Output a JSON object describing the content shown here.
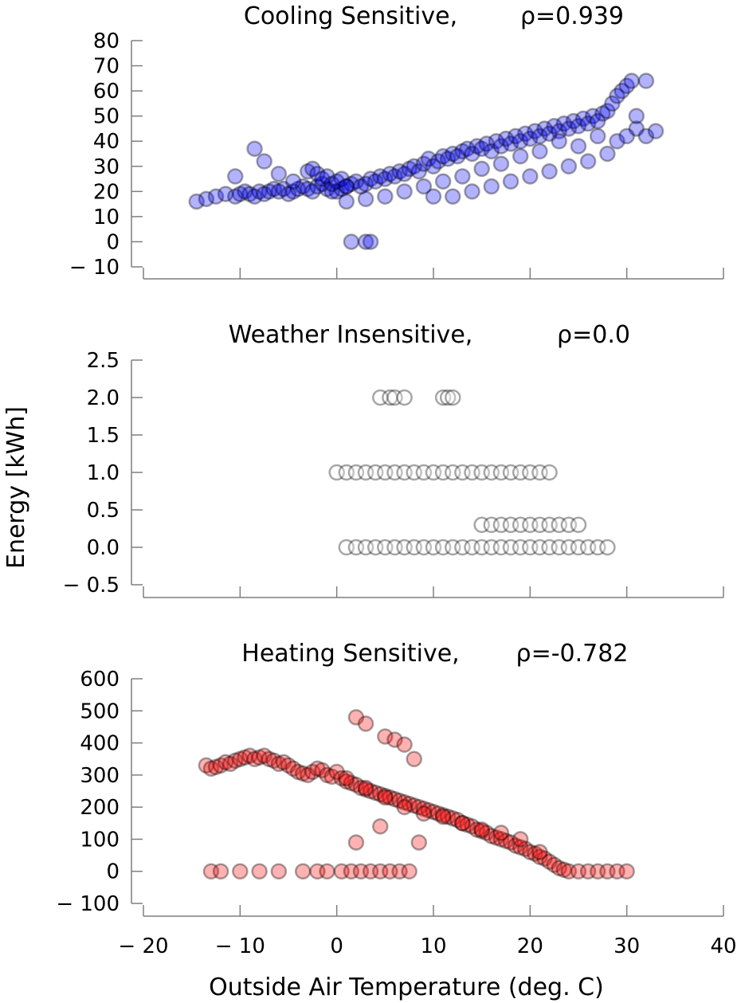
{
  "figure": {
    "ylabel": "Energy [kWh]",
    "xlabel": "Outside Air Temperature (deg. C)",
    "x_ticks": [
      "− 20",
      "− 10",
      "0",
      "10",
      "20",
      "30",
      "40"
    ]
  },
  "chart_data": [
    {
      "type": "scatter",
      "title": "Cooling Sensitive,",
      "rho": "ρ=0.939",
      "color": "#0000ff",
      "xlim": [
        -20,
        40
      ],
      "ylim": [
        -10,
        80
      ],
      "y_ticks": [
        "80",
        "70",
        "60",
        "50",
        "40",
        "30",
        "20",
        "10",
        "0",
        "− 10"
      ],
      "y_tick_values": [
        80,
        70,
        60,
        50,
        40,
        30,
        20,
        10,
        0,
        -10
      ],
      "x": [
        -14.5,
        -13.5,
        -12.5,
        -11.5,
        -10.5,
        -10,
        -9.5,
        -9,
        -8.5,
        -8,
        -7.5,
        -7,
        -6.5,
        -6,
        -5.5,
        -5,
        -4.5,
        -4,
        -3.5,
        -3,
        -2.5,
        -2,
        -1.5,
        -1,
        -0.5,
        0,
        0.5,
        1,
        1.5,
        2,
        2.5,
        3,
        3.5,
        4,
        4.5,
        5,
        5.5,
        6,
        6.5,
        7,
        7.5,
        8,
        8.5,
        9,
        9.5,
        10,
        10.5,
        11,
        11.5,
        12,
        12.5,
        13,
        13.5,
        14,
        14.5,
        15,
        15.5,
        16,
        16.5,
        17,
        17.5,
        18,
        18.5,
        19,
        19.5,
        20,
        20.5,
        21,
        21.5,
        22,
        22.5,
        23,
        23.5,
        24,
        24.5,
        25,
        25.5,
        26,
        26.5,
        27,
        27.5,
        28,
        28.5,
        29,
        29.5,
        30,
        30.5,
        31,
        32,
        33,
        -8.5,
        -7.5,
        -6,
        -4.5,
        -10.5,
        -3,
        -2.5,
        -2,
        -1.5,
        -1,
        -0.5,
        0,
        0.5,
        1,
        1.5,
        3,
        3.5,
        10,
        12,
        14,
        16,
        18,
        20,
        22,
        24,
        26,
        28,
        29,
        30,
        31,
        32,
        1,
        3,
        5,
        7,
        9,
        11,
        13,
        15,
        17,
        19,
        21,
        23,
        25,
        27
      ],
      "y": [
        16,
        17,
        18,
        19,
        18,
        19,
        20,
        19,
        18,
        20,
        19,
        20,
        21,
        20,
        21,
        19,
        20,
        21,
        22,
        21,
        20,
        22,
        23,
        21,
        20,
        20,
        21,
        22,
        23,
        24,
        22,
        23,
        25,
        24,
        26,
        25,
        27,
        26,
        28,
        27,
        29,
        30,
        28,
        31,
        33,
        30,
        32,
        34,
        33,
        35,
        34,
        36,
        37,
        35,
        38,
        37,
        39,
        36,
        40,
        38,
        41,
        39,
        42,
        40,
        43,
        41,
        44,
        42,
        45,
        43,
        46,
        44,
        47,
        45,
        48,
        46,
        49,
        47,
        50,
        48,
        51,
        52,
        55,
        58,
        60,
        62,
        64,
        45,
        42,
        44,
        37,
        32,
        27,
        24,
        26,
        28,
        29,
        27,
        25,
        26,
        23,
        24,
        25,
        22,
        0,
        0,
        0,
        18,
        18,
        20,
        22,
        24,
        26,
        28,
        30,
        32,
        35,
        40,
        42,
        50,
        64,
        16,
        17,
        18,
        20,
        22,
        24,
        26,
        29,
        31,
        34,
        36,
        40,
        38,
        42
      ]
    },
    {
      "type": "scatter",
      "title": "Weather Insensitive,",
      "rho": "ρ=0.0",
      "color": "#ffffff",
      "xlim": [
        -20,
        40
      ],
      "ylim": [
        -0.5,
        2.5
      ],
      "y_ticks": [
        "2.5",
        "2.0",
        "1.5",
        "1.0",
        "0.5",
        "0.0",
        "− 0.5"
      ],
      "y_tick_values": [
        2.5,
        2.0,
        1.5,
        1.0,
        0.5,
        0.0,
        -0.5
      ],
      "x": [
        4.5,
        5.5,
        6,
        7,
        11,
        11.5,
        12,
        0,
        1,
        2,
        3,
        4,
        5,
        6,
        7,
        8,
        9,
        10,
        11,
        12,
        13,
        14,
        15,
        16,
        17,
        18,
        19,
        20,
        21,
        22,
        15,
        16,
        17,
        18,
        19,
        20,
        21,
        22,
        23,
        24,
        25,
        1,
        2,
        3,
        4,
        5,
        6,
        7,
        8,
        9,
        10,
        11,
        12,
        13,
        14,
        15,
        16,
        17,
        18,
        19,
        20,
        21,
        22,
        23,
        24,
        25,
        26,
        27,
        28
      ],
      "y": [
        2,
        2,
        2,
        2,
        2,
        2,
        2,
        1,
        1,
        1,
        1,
        1,
        1,
        1,
        1,
        1,
        1,
        1,
        1,
        1,
        1,
        1,
        1,
        1,
        1,
        1,
        1,
        1,
        1,
        1,
        0.3,
        0.3,
        0.3,
        0.3,
        0.3,
        0.3,
        0.3,
        0.3,
        0.3,
        0.3,
        0.3,
        0,
        0,
        0,
        0,
        0,
        0,
        0,
        0,
        0,
        0,
        0,
        0,
        0,
        0,
        0,
        0,
        0,
        0,
        0,
        0,
        0,
        0,
        0,
        0,
        0,
        0,
        0,
        0
      ]
    },
    {
      "type": "scatter",
      "title": "Heating Sensitive,",
      "rho": "ρ=-0.782",
      "color": "#ff0000",
      "xlim": [
        -20,
        40
      ],
      "ylim": [
        -100,
        600
      ],
      "y_ticks": [
        "600",
        "500",
        "400",
        "300",
        "200",
        "100",
        "0",
        "− 100"
      ],
      "y_tick_values": [
        600,
        500,
        400,
        300,
        200,
        100,
        0,
        -100
      ],
      "x": [
        -13.5,
        -13,
        -12.5,
        -12,
        -11.5,
        -11,
        -10.5,
        -10,
        -9.5,
        -9,
        -8.5,
        -8,
        -7.5,
        -7,
        -6.5,
        -6,
        -5.5,
        -5,
        -4.5,
        -4,
        -3.5,
        -3,
        -2.5,
        -2,
        -1.5,
        -1,
        -0.5,
        0,
        0.5,
        1,
        1.5,
        2,
        2.5,
        3,
        3.5,
        4,
        4.5,
        5,
        5.5,
        6,
        6.5,
        7,
        7.5,
        8,
        8.5,
        9,
        9.5,
        10,
        10.5,
        11,
        11.5,
        12,
        12.5,
        13,
        13.5,
        14,
        14.5,
        15,
        15.5,
        16,
        16.5,
        17,
        17.5,
        18,
        18.5,
        19,
        19.5,
        20,
        20.5,
        21,
        21.5,
        22,
        22.5,
        23,
        23.5,
        24,
        25,
        26,
        27,
        28,
        29,
        30,
        2,
        3,
        5,
        6,
        7,
        8,
        2,
        4.5,
        8.5,
        -13,
        -12,
        -10,
        -8,
        -6,
        -3.5,
        -2,
        -1,
        0.5,
        1.5,
        2.5,
        3.5,
        4.5,
        5.5,
        6.5,
        7.5,
        1,
        3,
        5,
        7,
        9,
        11,
        13,
        15,
        17,
        19,
        21
      ],
      "y": [
        330,
        320,
        325,
        330,
        340,
        335,
        345,
        350,
        355,
        360,
        350,
        355,
        360,
        350,
        345,
        335,
        340,
        330,
        320,
        310,
        305,
        300,
        310,
        320,
        315,
        300,
        295,
        310,
        290,
        280,
        275,
        270,
        260,
        255,
        250,
        245,
        240,
        235,
        230,
        225,
        220,
        215,
        210,
        205,
        200,
        195,
        190,
        185,
        180,
        175,
        170,
        165,
        160,
        150,
        145,
        140,
        130,
        125,
        120,
        110,
        105,
        100,
        95,
        90,
        80,
        75,
        70,
        60,
        55,
        45,
        40,
        30,
        20,
        10,
        5,
        0,
        0,
        0,
        0,
        0,
        0,
        0,
        480,
        460,
        420,
        410,
        395,
        350,
        90,
        140,
        90,
        0,
        0,
        0,
        0,
        0,
        0,
        0,
        0,
        0,
        0,
        0,
        0,
        0,
        0,
        0,
        0,
        290,
        260,
        230,
        200,
        180,
        170,
        150,
        130,
        120,
        100,
        60
      ]
    }
  ]
}
